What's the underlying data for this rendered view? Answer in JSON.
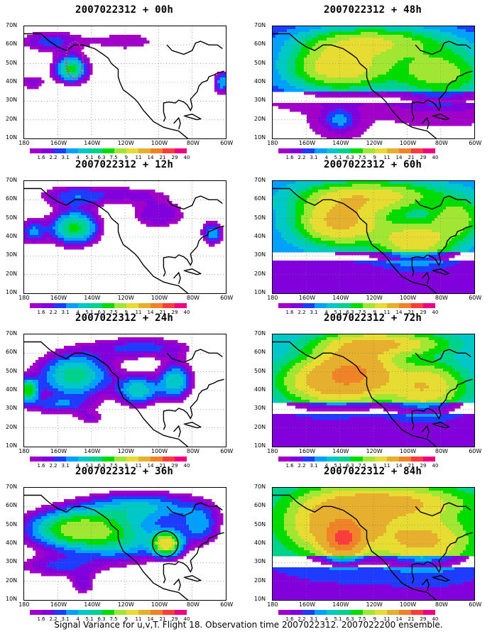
{
  "panels": [
    {
      "title": "2007022312 + 00h",
      "col": 0,
      "row": 0,
      "field": "p00"
    },
    {
      "title": "2007022312 + 48h",
      "col": 1,
      "row": 0,
      "field": "p48"
    },
    {
      "title": "2007022312 + 12h",
      "col": 0,
      "row": 1,
      "field": "p12"
    },
    {
      "title": "2007022312 + 60h",
      "col": 1,
      "row": 1,
      "field": "p60"
    },
    {
      "title": "2007022312 + 24h",
      "col": 0,
      "row": 2,
      "field": "p24"
    },
    {
      "title": "2007022312 + 72h",
      "col": 1,
      "row": 2,
      "field": "p72"
    },
    {
      "title": "2007022312 + 36h",
      "col": 0,
      "row": 3,
      "field": "p36"
    },
    {
      "title": "2007022312 + 84h",
      "col": 1,
      "row": 3,
      "field": "p84"
    }
  ],
  "lat_labels": [
    "70N",
    "60N",
    "50N",
    "40N",
    "30N",
    "20N",
    "10N"
  ],
  "lon_labels": [
    "180",
    "160W",
    "140W",
    "120W",
    "100W",
    "80W",
    "60W"
  ],
  "colorbar": {
    "colors": [
      "#a000c8",
      "#8200dc",
      "#1e3cff",
      "#00a0ff",
      "#00c8c8",
      "#00d28c",
      "#00dc00",
      "#a0e632",
      "#e6dc32",
      "#e6af2d",
      "#f08228",
      "#fa3c3c",
      "#f00082"
    ],
    "labels": [
      "1.6",
      "2.2",
      "3.1",
      "4",
      "5.1",
      "6.3",
      "7.5",
      "9",
      "11",
      "14",
      "21",
      "29",
      "40"
    ]
  },
  "caption": "Signal Variance for u,v,T. Flight 18. Observation time 2007022312. 2007022200 ensemble."
}
